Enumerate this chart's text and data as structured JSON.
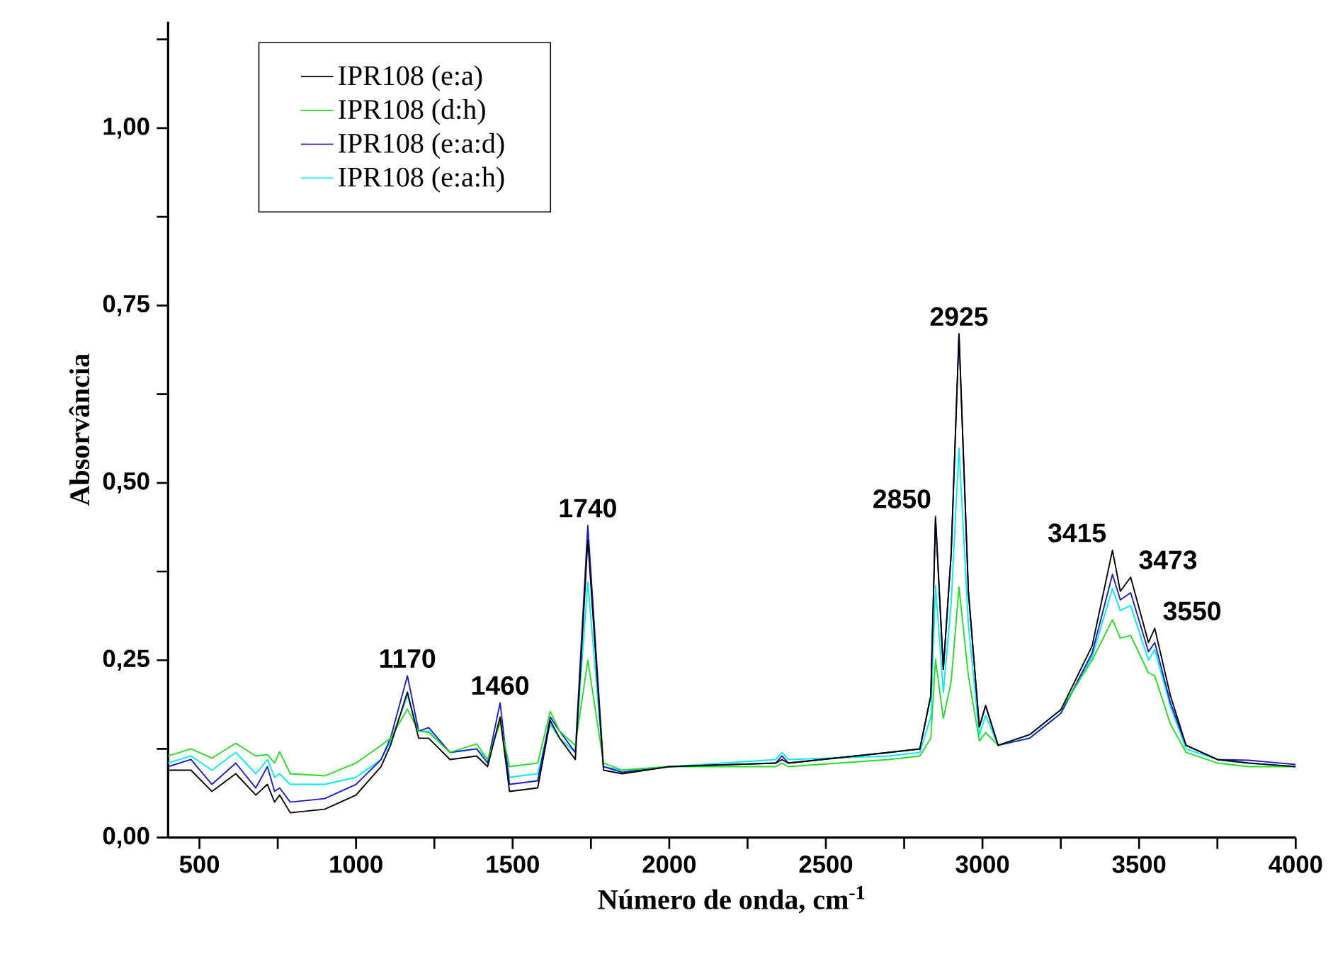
{
  "chart_data": {
    "type": "line",
    "xlabel": "Número de onda, cm$^{-1}$",
    "ylabel": "Absorvância",
    "x": [
      400,
      473,
      540,
      616,
      680,
      717,
      740,
      756,
      790,
      900,
      1000,
      1080,
      1110,
      1164,
      1200,
      1232,
      1300,
      1385,
      1420,
      1460,
      1490,
      1580,
      1620,
      1650,
      1700,
      1740,
      1790,
      1850,
      2000,
      2340,
      2360,
      2380,
      2700,
      2800,
      2835,
      2850,
      2875,
      2900,
      2925,
      2955,
      2990,
      3010,
      3050,
      3150,
      3250,
      3350,
      3415,
      3440,
      3473,
      3530,
      3550,
      3600,
      3650,
      3750,
      3850,
      4000
    ],
    "series": [
      {
        "name": "IPR108 (e:a)",
        "color": "#000000",
        "values": [
          0.095,
          0.095,
          0.065,
          0.09,
          0.06,
          0.075,
          0.05,
          0.06,
          0.035,
          0.04,
          0.06,
          0.1,
          0.13,
          0.205,
          0.14,
          0.14,
          0.11,
          0.115,
          0.1,
          0.17,
          0.065,
          0.07,
          0.165,
          0.14,
          0.11,
          0.42,
          0.095,
          0.09,
          0.1,
          0.105,
          0.11,
          0.105,
          0.12,
          0.125,
          0.2,
          0.45,
          0.237,
          0.4,
          0.71,
          0.347,
          0.156,
          0.186,
          0.13,
          0.145,
          0.18,
          0.27,
          0.405,
          0.347,
          0.367,
          0.275,
          0.295,
          0.2,
          0.13,
          0.11,
          0.105,
          0.1
        ]
      },
      {
        "name": "IPR108 (d:h)",
        "color": "#22dd22",
        "values": [
          0.115,
          0.125,
          0.112,
          0.133,
          0.115,
          0.117,
          0.105,
          0.121,
          0.09,
          0.087,
          0.105,
          0.13,
          0.14,
          0.181,
          0.15,
          0.148,
          0.12,
          0.132,
          0.11,
          0.162,
          0.1,
          0.105,
          0.178,
          0.15,
          0.13,
          0.25,
          0.105,
          0.095,
          0.1,
          0.1,
          0.105,
          0.1,
          0.11,
          0.115,
          0.14,
          0.251,
          0.168,
          0.22,
          0.353,
          0.228,
          0.136,
          0.148,
          0.13,
          0.145,
          0.18,
          0.25,
          0.307,
          0.281,
          0.285,
          0.232,
          0.228,
          0.16,
          0.12,
          0.105,
          0.1,
          0.1
        ]
      },
      {
        "name": "IPR108 (e:a:d)",
        "color": "#1a1acc",
        "values": [
          0.1,
          0.11,
          0.075,
          0.105,
          0.07,
          0.1,
          0.065,
          0.07,
          0.05,
          0.055,
          0.075,
          0.11,
          0.14,
          0.228,
          0.15,
          0.155,
          0.12,
          0.125,
          0.105,
          0.19,
          0.075,
          0.08,
          0.17,
          0.15,
          0.12,
          0.44,
          0.1,
          0.092,
          0.1,
          0.105,
          0.115,
          0.105,
          0.12,
          0.125,
          0.2,
          0.453,
          0.237,
          0.4,
          0.71,
          0.347,
          0.156,
          0.186,
          0.13,
          0.14,
          0.175,
          0.26,
          0.371,
          0.335,
          0.345,
          0.262,
          0.275,
          0.19,
          0.13,
          0.11,
          0.109,
          0.103
        ]
      },
      {
        "name": "IPR108 (e:a:h)",
        "color": "#00eeee",
        "values": [
          0.105,
          0.115,
          0.095,
          0.12,
          0.09,
          0.11,
          0.085,
          0.09,
          0.075,
          0.075,
          0.085,
          0.11,
          0.135,
          0.2,
          0.15,
          0.15,
          0.12,
          0.125,
          0.11,
          0.165,
          0.085,
          0.09,
          0.16,
          0.14,
          0.12,
          0.36,
          0.1,
          0.095,
          0.1,
          0.11,
          0.12,
          0.11,
          0.115,
          0.12,
          0.17,
          0.355,
          0.205,
          0.33,
          0.549,
          0.3,
          0.145,
          0.172,
          0.13,
          0.14,
          0.175,
          0.255,
          0.351,
          0.32,
          0.327,
          0.25,
          0.265,
          0.185,
          0.125,
          0.11,
          0.105,
          0.1
        ]
      }
    ],
    "xlim": [
      400,
      4000
    ],
    "xticks": [
      500,
      {
        "value": 750,
        "label": null
      },
      1000,
      {
        "value": 1250,
        "label": null
      },
      1500,
      {
        "value": 1750,
        "label": null
      },
      2000,
      {
        "value": 2250,
        "label": null
      },
      2500,
      {
        "value": 2750,
        "label": null
      },
      3000,
      {
        "value": 3250,
        "label": null
      },
      3500,
      {
        "value": 3750,
        "label": null
      },
      4000
    ],
    "ylim": [
      0,
      1.15
    ],
    "yticks": [
      {
        "value": 0,
        "label": "0,00"
      },
      {
        "value": 0.125,
        "label": null
      },
      {
        "value": 0.25,
        "label": "0,25"
      },
      {
        "value": 0.375,
        "label": null
      },
      {
        "value": 0.5,
        "label": "0,50"
      },
      {
        "value": 0.625,
        "label": null
      },
      {
        "value": 0.75,
        "label": "0,75"
      },
      {
        "value": 0.875,
        "label": null
      },
      {
        "value": 1,
        "label": "1,00"
      },
      {
        "value": 1.125,
        "label": null
      }
    ],
    "annotations": [
      {
        "text": "1170",
        "x": 1164,
        "y": 0.228
      },
      {
        "text": "1460",
        "x": 1460,
        "y": 0.19
      },
      {
        "text": "1740",
        "x": 1740,
        "y": 0.44
      },
      {
        "text": "2850",
        "x": 2850,
        "y": 0.453
      },
      {
        "text": "2925",
        "x": 2925,
        "y": 0.71
      },
      {
        "text": "3415",
        "x": 3415,
        "y": 0.405
      },
      {
        "text": "3473",
        "x": 3473,
        "y": 0.367
      },
      {
        "text": "3550",
        "x": 3550,
        "y": 0.295
      }
    ],
    "legend": "top left",
    "marker": "none",
    "grid": false
  }
}
